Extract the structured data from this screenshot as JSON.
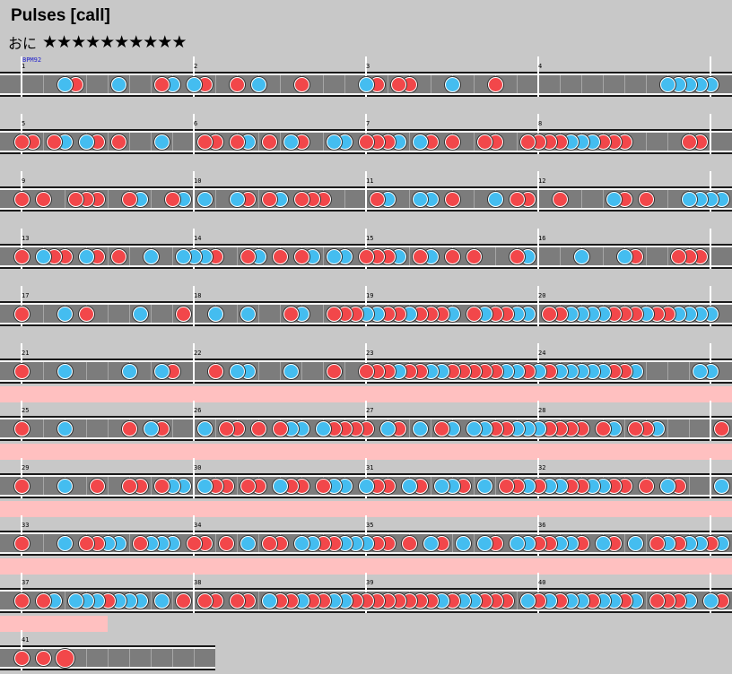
{
  "song": {
    "title": "Pulses [call]"
  },
  "course": {
    "label": "おに",
    "stars": "★★★★★★★★★★"
  },
  "bpm_label": "BPM92",
  "measures_per_row": 4,
  "colors": {
    "don": "#f2474a",
    "ka": "#44bdf0",
    "gogo": "#ffc0c0",
    "lane": "#7c7c7c",
    "background": "#c8c8c8"
  },
  "rows": [
    {
      "measures": [
        "1",
        "2",
        "3",
        "4"
      ],
      "gogo": false
    },
    {
      "measures": [
        "5",
        "6",
        "7",
        "8"
      ],
      "gogo": false
    },
    {
      "measures": [
        "9",
        "10",
        "11",
        "12"
      ],
      "gogo": false
    },
    {
      "measures": [
        "13",
        "14",
        "15",
        "16"
      ],
      "gogo": false
    },
    {
      "measures": [
        "17",
        "18",
        "19",
        "20"
      ],
      "gogo": false
    },
    {
      "measures": [
        "21",
        "22",
        "23",
        "24"
      ],
      "gogo": false
    },
    {
      "measures": [
        "25",
        "26",
        "27",
        "28"
      ],
      "gogo": true
    },
    {
      "measures": [
        "29",
        "30",
        "31",
        "32"
      ],
      "gogo": true
    },
    {
      "measures": [
        "33",
        "34",
        "35",
        "36"
      ],
      "gogo": true
    },
    {
      "measures": [
        "37",
        "38",
        "39",
        "40"
      ],
      "gogo": true
    },
    {
      "measures": [
        "41"
      ],
      "gogo": true,
      "partial_beats": 10,
      "big_notes": [
        [
          2,
          "d"
        ]
      ]
    }
  ],
  "notes": [
    "0000kd000k000dk0kd00d0k000d00000kd0dd000k000d000000000000000kkkkk",
    "dd0dk0kd0d000k000dd0dk0d0kd00kk0dddk0kd0d00dd00ddddkkkddd00000dd",
    "d0d00ddd00dk00dk0k00kd0dk0ddd0000dk00kk0d000k0dd00d0000kd0d000kkkk",
    "d0kdd0kd0d00k00kkkd00dk0d0dk0kk0dddk0dk0d0d000dk0000k000kd000ddd",
    "d000k0d0000k000d00k00k000dk00dddkkddkdddk0dkddkk0ddkkkkdddkddkkkk00dkk",
    "d000k00000k00kd000d0kk000k000d00dddkddkkdddddkkdkdkkkkkddk00000kk",
    "d000k00000d0kd000k0dd0d0dkk0kdddd0kd0k0dk0kkddkkkdddd0dk0ddk00000d0dd",
    "d000k00d00dd0dkk0kdd0dd0kdd0dkk0kdd0kd0kkd0k0ddkdkkddkkdd0d0kd000kkkkdkk",
    "d000k0ddkk0dkkk0dd0d0k0dd0kkddkkkdd0d0kd0k0kd0kkddkkd0kd0k0dkdkkdkk",
    "d0dk0kkkdkkk0k0d0dd0dd0kddkddkkddddddddkdkkddd0kdkdkkdkkdk0dddk0kddd",
    "d0d0"
  ]
}
